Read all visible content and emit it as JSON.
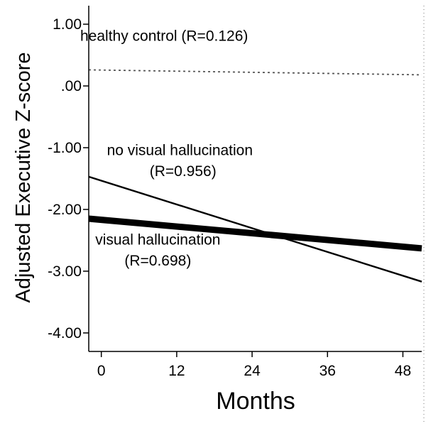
{
  "chart_data": {
    "type": "line",
    "xlabel": "Months",
    "ylabel": "Adjusted Executive Z-score",
    "xlim": [
      -2,
      51
    ],
    "ylim": [
      -4.3,
      1.3
    ],
    "x_ticks": [
      0,
      12,
      24,
      36,
      48
    ],
    "x_tick_labels": [
      "0",
      "12",
      "24",
      "36",
      "48"
    ],
    "y_ticks": [
      1.0,
      0.0,
      -1.0,
      -2.0,
      -3.0,
      -4.0
    ],
    "y_tick_labels": [
      "1.00",
      ".00",
      "-1.00",
      "-2.00",
      "-3.00",
      "-4.00"
    ],
    "grid": false,
    "series": [
      {
        "name": "healthy control",
        "x": [
          -2,
          51
        ],
        "y": [
          0.26,
          0.18
        ],
        "style": "dotted",
        "weight": "thin",
        "color": "#555555"
      },
      {
        "name": "no visual hallucination",
        "x": [
          -2,
          51
        ],
        "y": [
          -1.47,
          -3.17
        ],
        "style": "solid",
        "weight": "thin",
        "color": "#000000"
      },
      {
        "name": "visual hallucination",
        "x": [
          -2,
          51
        ],
        "y": [
          -2.15,
          -2.63
        ],
        "style": "solid",
        "weight": "thick",
        "color": "#000000"
      }
    ],
    "annotations": [
      {
        "text": "healthy control (R=0.126)",
        "x": 10,
        "y": 0.73
      },
      {
        "text": "no visual hallucination",
        "x": 12.5,
        "y": -1.12
      },
      {
        "text": "(R=0.956)",
        "x": 13,
        "y": -1.46
      },
      {
        "text": "visual hallucination",
        "x": 9,
        "y": -2.57
      },
      {
        "text": "(R=0.698)",
        "x": 9,
        "y": -2.91
      }
    ]
  }
}
